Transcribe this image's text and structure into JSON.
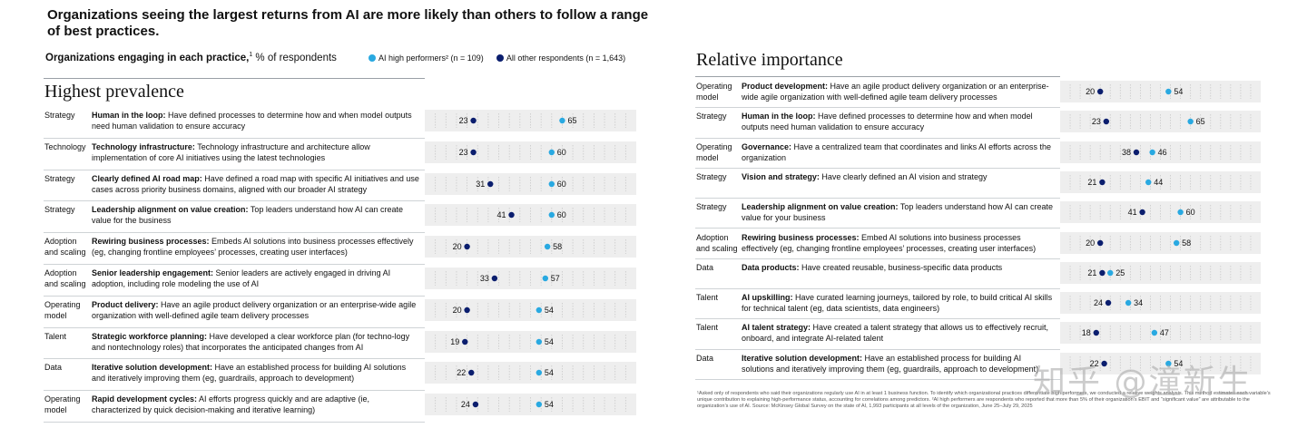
{
  "headline": "Organizations seeing the largest returns from AI are more likely than others to follow a range of best practices.",
  "subhead": {
    "bold": "Organizations engaging in each practice,",
    "sup": "1",
    "rest": " % of respondents"
  },
  "legend": [
    {
      "label": "AI high performers² (n = 109)",
      "color": "#29a9e1"
    },
    {
      "label": "All other respondents (n = 1,643)",
      "color": "#0b1e6e"
    }
  ],
  "colors": {
    "high": "#29a9e1",
    "other": "#0b1e6e",
    "band": "#eeeeee"
  },
  "chart_data": [
    {
      "type": "scatter",
      "title": "Highest prevalence",
      "series": [
        {
          "name": "AI high performers² (n = 109)",
          "key": "high"
        },
        {
          "name": "All other respondents (n = 1,643)",
          "key": "other"
        }
      ],
      "xlim": [
        0,
        100
      ],
      "rows": [
        {
          "category": "Strategy",
          "title": "Human in the loop:",
          "desc": "Have defined processes to determine how and when model outputs need human validation to ensure accuracy",
          "other": 23,
          "high": 65
        },
        {
          "category": "Technology",
          "title": "Technology infrastructure:",
          "desc": "Technology infrastructure and architecture allow implementation of core AI initiatives using the latest technologies",
          "other": 23,
          "high": 60
        },
        {
          "category": "Strategy",
          "title": "Clearly defined AI road map:",
          "desc": "Have defined a road map with specific AI initiatives and use cases across priority business domains, aligned with our broader AI strategy",
          "other": 31,
          "high": 60
        },
        {
          "category": "Strategy",
          "title": "Leadership alignment on value creation:",
          "desc": "Top leaders understand how AI can create value for the business",
          "other": 41,
          "high": 60
        },
        {
          "category": "Adoption and scaling",
          "title": "Rewiring business processes:",
          "desc": "Embeds AI solutions into business processes effectively (eg, changing frontline employees’ processes, creating user interfaces)",
          "other": 20,
          "high": 58
        },
        {
          "category": "Adoption and scaling",
          "title": "Senior leadership engagement:",
          "desc": "Senior leaders are actively engaged in driving AI adoption, including role modeling the use of AI",
          "other": 33,
          "high": 57
        },
        {
          "category": "Operating model",
          "title": "Product delivery:",
          "desc": "Have an agile product delivery organization or an enterprise-wide agile organization with well-defined agile team delivery processes",
          "other": 20,
          "high": 54
        },
        {
          "category": "Talent",
          "title": "Strategic workforce planning:",
          "desc": "Have developed a clear workforce plan (for techno-logy and nontechnology roles) that incorporates the anticipated changes from AI",
          "other": 19,
          "high": 54
        },
        {
          "category": "Data",
          "title": "Iterative solution development:",
          "desc": "Have an established process for building AI solutions and iteratively improving them (eg, guardrails, approach to development)",
          "other": 22,
          "high": 54
        },
        {
          "category": "Operating model",
          "title": "Rapid development cycles:",
          "desc": "AI efforts progress quickly and are adaptive (ie, characterized by quick decision-making and iterative learning)",
          "other": 24,
          "high": 54
        }
      ]
    },
    {
      "type": "scatter",
      "title": "Relative importance",
      "series": [
        {
          "name": "AI high performers² (n = 109)",
          "key": "high"
        },
        {
          "name": "All other respondents (n = 1,643)",
          "key": "other"
        }
      ],
      "xlim": [
        0,
        100
      ],
      "rows": [
        {
          "category": "Operating model",
          "title": "Product development:",
          "desc": "Have an agile product delivery organization or an enterprise-wide agile organization with well-defined agile team delivery processes",
          "other": 20,
          "high": 54
        },
        {
          "category": "Strategy",
          "title": "Human in the loop:",
          "desc": "Have defined processes to determine how and when model outputs need human validation to ensure accuracy",
          "other": 23,
          "high": 65
        },
        {
          "category": "Operating model",
          "title": "Governance:",
          "desc": "Have a centralized team that coordinates and links AI efforts across the organization",
          "other": 38,
          "high": 46
        },
        {
          "category": "Strategy",
          "title": "Vision and strategy:",
          "desc": "Have clearly defined an AI vision and strategy",
          "other": 21,
          "high": 44
        },
        {
          "category": "Strategy",
          "title": "Leadership alignment on value creation:",
          "desc": "Top leaders understand how AI can create value for your business",
          "other": 41,
          "high": 60
        },
        {
          "category": "Adoption and scaling",
          "title": "Rewiring business processes:",
          "desc": "Embed AI solutions into business processes effectively (eg, changing frontline employees’ processes, creating user interfaces)",
          "other": 20,
          "high": 58
        },
        {
          "category": "Data",
          "title": "Data products:",
          "desc": "Have created reusable, business-specific data products",
          "other": 21,
          "high": 25
        },
        {
          "category": "Talent",
          "title": "AI upskilling:",
          "desc": "Have curated learning journeys, tailored by role, to build critical AI skills for technical talent (eg, data scientists, data engineers)",
          "other": 24,
          "high": 34
        },
        {
          "category": "Talent",
          "title": "AI talent strategy:",
          "desc": "Have created a talent strategy that allows us to effectively recruit, onboard, and integrate AI-related talent",
          "other": 18,
          "high": 47
        },
        {
          "category": "Data",
          "title": "Iterative solution development:",
          "desc": "Have an established process for building AI solutions and iteratively improving them (eg, guardrails, approach to development)",
          "other": 22,
          "high": 54
        }
      ]
    }
  ],
  "footnote": "¹Asked only of respondents who said their organizations regularly use AI in at least 1 business function. To identify which organizational practices differentiate high performers, we conducted a relative weights analysis. This method estimates each variable’s unique contribution to explaining high-performance status, accounting for correlations among predictors. ²AI high performers are respondents who reported that more than 5% of their organization’s EBIT and “significant value” are attributable to the organization’s use of AI. Source: McKinsey Global Survey on the state of AI, 1,993 participants at all levels of the organization, June 25–July 29, 2025",
  "watermark": "知乎 @潼新生"
}
